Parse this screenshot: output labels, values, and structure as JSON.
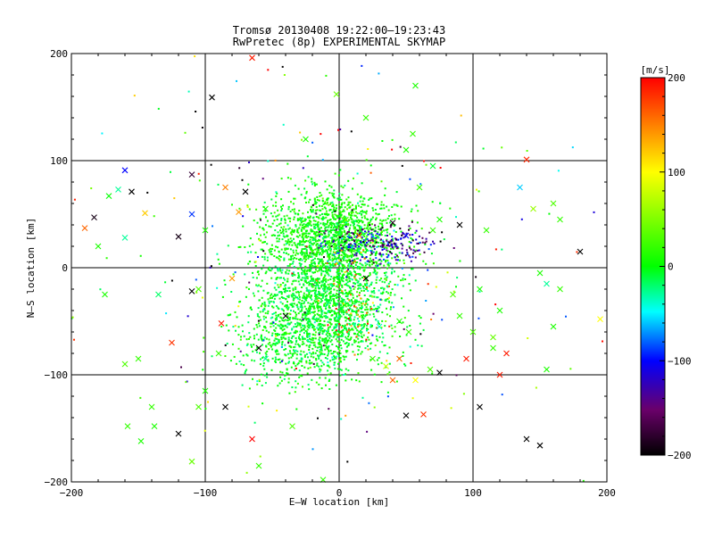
{
  "chart_data": {
    "type": "scatter",
    "title_line1": "Tromsø 20130408 19:22:00–19:23:43",
    "title_line2": "RwPretec (8p) EXPERIMENTAL SKYMAP",
    "xlabel": "E–W location [km]",
    "ylabel": "N–S location [km]",
    "xlim": [
      -200,
      200
    ],
    "ylim": [
      -200,
      200
    ],
    "xticks": [
      "−200",
      "−100",
      "0",
      "100",
      "200"
    ],
    "yticks": [
      "−200",
      "−100",
      "0",
      "100",
      "200"
    ],
    "grid": true,
    "colorbar": {
      "unit_label": "[m/s]",
      "range": [
        -200,
        200
      ],
      "ticks": [
        "200",
        "100",
        "0",
        "−100",
        "−200"
      ]
    },
    "meteor_clusters": [
      {
        "center": [
          -5,
          28
        ],
        "spread": [
          25,
          22
        ],
        "count": 1500,
        "velocity_mean": 5,
        "velocity_spread": 12
      },
      {
        "center": [
          -10,
          -35
        ],
        "spread": [
          25,
          28
        ],
        "count": 1600,
        "velocity_mean": -5,
        "velocity_spread": 14
      },
      {
        "center": [
          -35,
          -70
        ],
        "spread": [
          25,
          22
        ],
        "count": 400,
        "velocity_mean": 0,
        "velocity_spread": 12
      },
      {
        "center": [
          30,
          22
        ],
        "spread": [
          20,
          10
        ],
        "count": 250,
        "velocity_mean": -130,
        "velocity_spread": 40
      },
      {
        "center": [
          10,
          -30
        ],
        "spread": [
          12,
          20
        ],
        "count": 60,
        "velocity_mean": 150,
        "velocity_spread": 35
      },
      {
        "center": [
          0,
          0
        ],
        "spread": [
          95,
          95
        ],
        "count": 250,
        "velocity_mean": 0,
        "velocity_spread": 120
      }
    ],
    "crosses": [
      {
        "x": -65,
        "y": 196,
        "v": 190
      },
      {
        "x": -95,
        "y": 159,
        "v": -200
      },
      {
        "x": -2,
        "y": 162,
        "v": 40
      },
      {
        "x": 57,
        "y": 170,
        "v": 10
      },
      {
        "x": 140,
        "y": 101,
        "v": 185
      },
      {
        "x": -110,
        "y": 87,
        "v": -175
      },
      {
        "x": -183,
        "y": 47,
        "v": -190
      },
      {
        "x": -172,
        "y": 67,
        "v": 0
      },
      {
        "x": -165,
        "y": 73,
        "v": -30
      },
      {
        "x": -155,
        "y": 71,
        "v": -200
      },
      {
        "x": -160,
        "y": 91,
        "v": -100
      },
      {
        "x": -145,
        "y": 51,
        "v": 120
      },
      {
        "x": -190,
        "y": 37,
        "v": 160
      },
      {
        "x": -180,
        "y": 20,
        "v": 10
      },
      {
        "x": -160,
        "y": 28,
        "v": -30
      },
      {
        "x": -120,
        "y": 29,
        "v": -190
      },
      {
        "x": -110,
        "y": 50,
        "v": -90
      },
      {
        "x": -70,
        "y": 71,
        "v": -200
      },
      {
        "x": -85,
        "y": 75,
        "v": 150
      },
      {
        "x": -75,
        "y": 52,
        "v": 140
      },
      {
        "x": -55,
        "y": 55,
        "v": 10
      },
      {
        "x": -100,
        "y": 35,
        "v": 10
      },
      {
        "x": -175,
        "y": -25,
        "v": 10
      },
      {
        "x": -135,
        "y": -25,
        "v": -20
      },
      {
        "x": -110,
        "y": -22,
        "v": -200
      },
      {
        "x": -80,
        "y": -10,
        "v": 140
      },
      {
        "x": -88,
        "y": -52,
        "v": 190
      },
      {
        "x": -105,
        "y": -20,
        "v": 30
      },
      {
        "x": -125,
        "y": -70,
        "v": 180
      },
      {
        "x": -150,
        "y": -85,
        "v": 20
      },
      {
        "x": -160,
        "y": -90,
        "v": 30
      },
      {
        "x": -140,
        "y": -130,
        "v": 20
      },
      {
        "x": -138,
        "y": -148,
        "v": 10
      },
      {
        "x": -158,
        "y": -148,
        "v": 20
      },
      {
        "x": -148,
        "y": -162,
        "v": 10
      },
      {
        "x": -120,
        "y": -155,
        "v": -200
      },
      {
        "x": -110,
        "y": -181,
        "v": 40
      },
      {
        "x": -85,
        "y": -130,
        "v": -200
      },
      {
        "x": -65,
        "y": -160,
        "v": 200
      },
      {
        "x": -60,
        "y": -185,
        "v": 20
      },
      {
        "x": -35,
        "y": -148,
        "v": 30
      },
      {
        "x": -12,
        "y": -198,
        "v": 20
      },
      {
        "x": 50,
        "y": -138,
        "v": -200
      },
      {
        "x": 63,
        "y": -137,
        "v": 180
      },
      {
        "x": 57,
        "y": -105,
        "v": 100
      },
      {
        "x": 40,
        "y": -105,
        "v": 160
      },
      {
        "x": 35,
        "y": -92,
        "v": 80
      },
      {
        "x": 75,
        "y": -98,
        "v": -200
      },
      {
        "x": 95,
        "y": -85,
        "v": 190
      },
      {
        "x": 125,
        "y": -80,
        "v": 190
      },
      {
        "x": 105,
        "y": -130,
        "v": -200
      },
      {
        "x": 120,
        "y": -100,
        "v": 190
      },
      {
        "x": 140,
        "y": -160,
        "v": -200
      },
      {
        "x": 150,
        "y": -166,
        "v": -200
      },
      {
        "x": 155,
        "y": -95,
        "v": 10
      },
      {
        "x": 160,
        "y": -55,
        "v": 10
      },
      {
        "x": 165,
        "y": -20,
        "v": 20
      },
      {
        "x": 155,
        "y": -15,
        "v": -30
      },
      {
        "x": 150,
        "y": -5,
        "v": 10
      },
      {
        "x": 180,
        "y": 15,
        "v": -200
      },
      {
        "x": 195,
        "y": -48,
        "v": 100
      },
      {
        "x": 160,
        "y": 60,
        "v": 30
      },
      {
        "x": 165,
        "y": 45,
        "v": 20
      },
      {
        "x": 135,
        "y": 75,
        "v": -60
      },
      {
        "x": 145,
        "y": 55,
        "v": 60
      },
      {
        "x": 120,
        "y": -40,
        "v": 10
      },
      {
        "x": 110,
        "y": 35,
        "v": 20
      },
      {
        "x": 90,
        "y": 40,
        "v": -200
      },
      {
        "x": 75,
        "y": 45,
        "v": 10
      },
      {
        "x": 70,
        "y": 35,
        "v": 20
      },
      {
        "x": 85,
        "y": -25,
        "v": 30
      },
      {
        "x": 105,
        "y": -20,
        "v": 10
      },
      {
        "x": 115,
        "y": -65,
        "v": 40
      },
      {
        "x": 100,
        "y": -60,
        "v": 30
      },
      {
        "x": 90,
        "y": -45,
        "v": 20
      },
      {
        "x": 50,
        "y": 30,
        "v": -100
      },
      {
        "x": 40,
        "y": 42,
        "v": -190
      },
      {
        "x": 60,
        "y": 75,
        "v": 20
      },
      {
        "x": 70,
        "y": 95,
        "v": -10
      },
      {
        "x": 50,
        "y": 110,
        "v": 10
      },
      {
        "x": 20,
        "y": 140,
        "v": 20
      },
      {
        "x": 55,
        "y": 125,
        "v": 20
      },
      {
        "x": -25,
        "y": 120,
        "v": 10
      },
      {
        "x": 15,
        "y": 30,
        "v": 150
      },
      {
        "x": 5,
        "y": 45,
        "v": 30
      },
      {
        "x": -20,
        "y": 15,
        "v": 20
      },
      {
        "x": 20,
        "y": -10,
        "v": -200
      },
      {
        "x": 30,
        "y": -55,
        "v": -40
      },
      {
        "x": 15,
        "y": -60,
        "v": 10
      },
      {
        "x": 25,
        "y": -85,
        "v": 20
      },
      {
        "x": -40,
        "y": -45,
        "v": -200
      },
      {
        "x": -55,
        "y": -85,
        "v": -30
      },
      {
        "x": -60,
        "y": -75,
        "v": -200
      },
      {
        "x": -90,
        "y": -80,
        "v": 20
      },
      {
        "x": -100,
        "y": -115,
        "v": 10
      },
      {
        "x": -105,
        "y": -130,
        "v": 30
      },
      {
        "x": 45,
        "y": -85,
        "v": 160
      },
      {
        "x": 45,
        "y": -50,
        "v": 10
      },
      {
        "x": 52,
        "y": -60,
        "v": 20
      },
      {
        "x": 68,
        "y": -95,
        "v": 30
      },
      {
        "x": 115,
        "y": -75,
        "v": 20
      }
    ]
  }
}
